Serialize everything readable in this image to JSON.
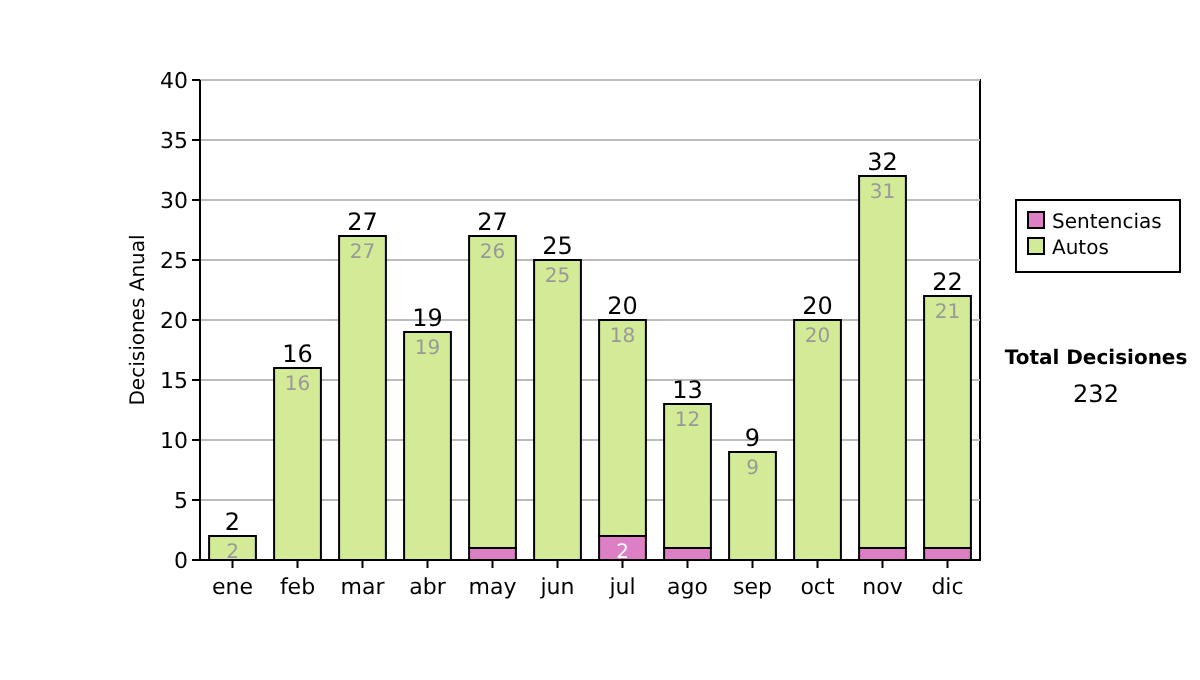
{
  "chart_data": {
    "type": "bar",
    "stacked": true,
    "ylabel": "Decisiones Anual",
    "categories": [
      "ene",
      "feb",
      "mar",
      "abr",
      "may",
      "jun",
      "jul",
      "ago",
      "sep",
      "oct",
      "nov",
      "dic"
    ],
    "series": [
      {
        "name": "Sentencias",
        "color": "#dd7fc4",
        "values": [
          0,
          0,
          0,
          0,
          1,
          0,
          2,
          1,
          0,
          0,
          1,
          1
        ],
        "value_labels": [
          null,
          null,
          null,
          null,
          null,
          null,
          "2",
          null,
          null,
          null,
          null,
          null
        ]
      },
      {
        "name": "Autos",
        "color": "#d3ea96",
        "values": [
          2,
          16,
          27,
          19,
          26,
          25,
          18,
          12,
          9,
          20,
          31,
          21
        ],
        "value_labels": [
          "2",
          "16",
          "27",
          "19",
          "26",
          "25",
          "18",
          "12",
          "9",
          "20",
          "31",
          "21"
        ]
      }
    ],
    "totals": [
      "2",
      "16",
      "27",
      "19",
      "27",
      "25",
      "20",
      "13",
      "9",
      "20",
      "32",
      "22"
    ],
    "ylim": [
      0,
      40
    ],
    "yticks": [
      0,
      5,
      10,
      15,
      20,
      25,
      30,
      35,
      40
    ],
    "grid": "y",
    "legend": "right",
    "annotations": [
      "Total Decisiones",
      "232"
    ]
  }
}
